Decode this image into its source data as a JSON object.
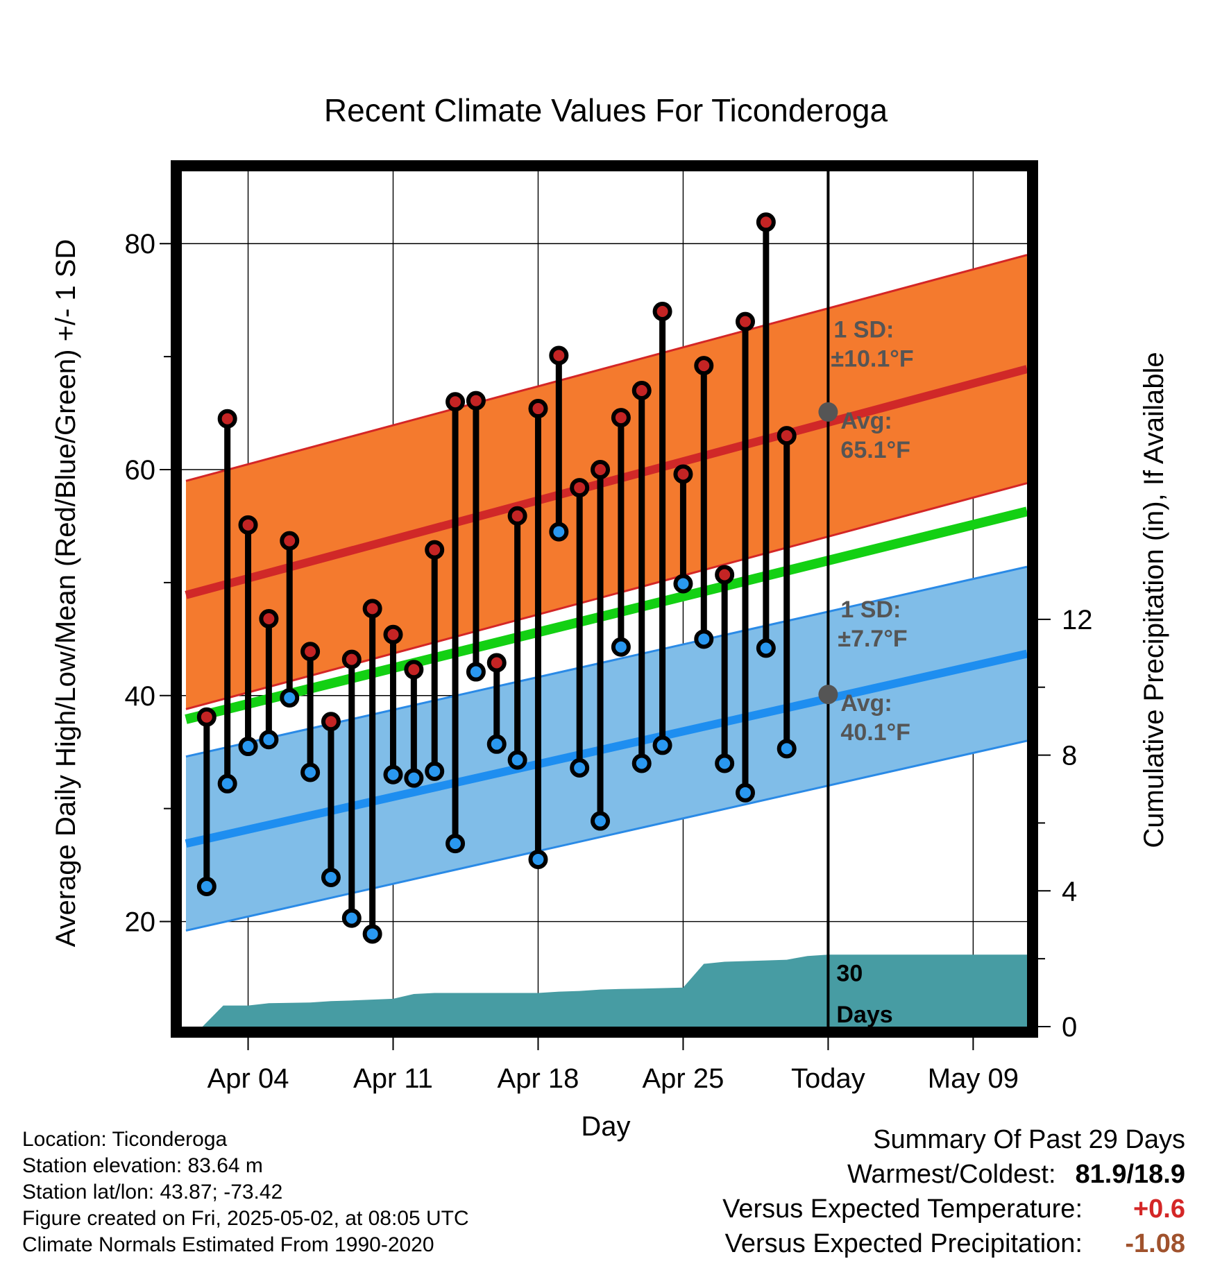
{
  "chart_data": {
    "type": "line",
    "title": "Recent Climate Values For Ticonderoga",
    "xlabel": "Day",
    "ylabel": "Average Daily High/Low/Mean (Red/Blue/Green) +/- 1 SD",
    "y2label": "Cumulative Precipitation (in), If Available",
    "x_ticks": [
      "Apr 04",
      "Apr 11",
      "Apr 18",
      "Apr 25",
      "Today",
      "May 09"
    ],
    "x_tick_days": [
      4,
      11,
      18,
      25,
      32,
      39
    ],
    "xlim_days": [
      0.8,
      41.6
    ],
    "ylim": [
      10.7,
      86.4
    ],
    "y_ticks": [
      20,
      40,
      60,
      80
    ],
    "y2lim": [
      0,
      25.2
    ],
    "y2_ticks": [
      0,
      4,
      8,
      12
    ],
    "grid": true,
    "today_day": 32,
    "normals": {
      "days": [
        1,
        41.6
      ],
      "high_avg": [
        48.9,
        68.9
      ],
      "high_sd": 10.1,
      "low_avg": [
        26.9,
        43.7
      ],
      "low_sd": 7.7,
      "mean_avg": [
        37.9,
        56.3
      ]
    },
    "today_values": {
      "high_label_sd": "1 SD:",
      "high_sd_text": "±10.1°F",
      "high_label_avg": "Avg:",
      "high_avg_text": "65.1°F",
      "high_avg": 65.1,
      "low_label_sd": "1 SD:",
      "low_sd_text": "±7.7°F",
      "low_label_avg": "Avg:",
      "low_avg_text": "40.1°F",
      "low_avg": 40.1
    },
    "observed": {
      "days": [
        2,
        3,
        4,
        5,
        6,
        7,
        8,
        9,
        10,
        11,
        12,
        13,
        14,
        15,
        16,
        17,
        18,
        19,
        20,
        21,
        22,
        23,
        24,
        25,
        26,
        27,
        28,
        29,
        30
      ],
      "high": [
        38.1,
        64.5,
        55.1,
        46.8,
        53.7,
        43.9,
        37.7,
        43.2,
        47.7,
        45.4,
        42.3,
        52.9,
        66.0,
        66.1,
        42.9,
        55.9,
        65.4,
        70.1,
        58.4,
        60.0,
        64.6,
        67.0,
        74.0,
        59.6,
        69.2,
        50.7,
        73.1,
        81.9,
        63.0
      ],
      "low": [
        23.1,
        32.2,
        35.5,
        36.1,
        39.8,
        33.2,
        23.9,
        20.3,
        18.9,
        33.0,
        32.7,
        33.3,
        26.9,
        42.1,
        35.7,
        34.3,
        25.5,
        54.5,
        33.6,
        28.9,
        44.3,
        34.0,
        35.6,
        49.9,
        45.0,
        34.0,
        31.4,
        44.2,
        35.3
      ]
    },
    "precip": {
      "days": [
        1.8,
        2.8,
        4.0,
        5.0,
        7.0,
        8.0,
        9.0,
        11.0,
        12.0,
        13.0,
        18.0,
        19.0,
        20.0,
        21.0,
        22.0,
        23.0,
        25.0,
        26.0,
        27.0,
        29.0,
        30.0,
        31.0,
        32.0,
        41.6
      ],
      "values": [
        0,
        0.62,
        0.62,
        0.69,
        0.71,
        0.75,
        0.77,
        0.82,
        0.96,
        0.99,
        0.99,
        1.03,
        1.05,
        1.09,
        1.11,
        1.12,
        1.15,
        1.85,
        1.91,
        1.95,
        1.97,
        2.08,
        2.12,
        2.12
      ],
      "label_value": "30",
      "label_unit": "Days"
    },
    "colors": {
      "high_band": "#f47a2e",
      "high_edge": "#d42626",
      "high_avg": "#d02828",
      "low_band": "#80bde8",
      "low_edge": "#2a8ae6",
      "low_avg": "#1e8ef0",
      "mean_avg": "#13d013",
      "precip": "#479ca3",
      "high_dot": "#c42424",
      "low_dot": "#2a98f0",
      "today_dot": "#555555"
    }
  },
  "footer": {
    "location": "Location: Ticonderoga",
    "elevation": "Station elevation: 83.64 m",
    "latlon": "Station lat/lon: 43.87; -73.42",
    "created": "Figure created on Fri, 2025-05-02, at 08:05 UTC",
    "normals": "Climate Normals Estimated From 1990-2020"
  },
  "summary": {
    "heading": "Summary Of Past 29 Days",
    "warm_cold_label": "Warmest/Coldest:",
    "warm_cold_value": "81.9/18.9",
    "temp_label": "Versus Expected Temperature:",
    "temp_value": "+0.6",
    "temp_color": "#d42626",
    "precip_label": "Versus Expected Precipitation:",
    "precip_value": "-1.08",
    "precip_color": "#a0522d"
  }
}
